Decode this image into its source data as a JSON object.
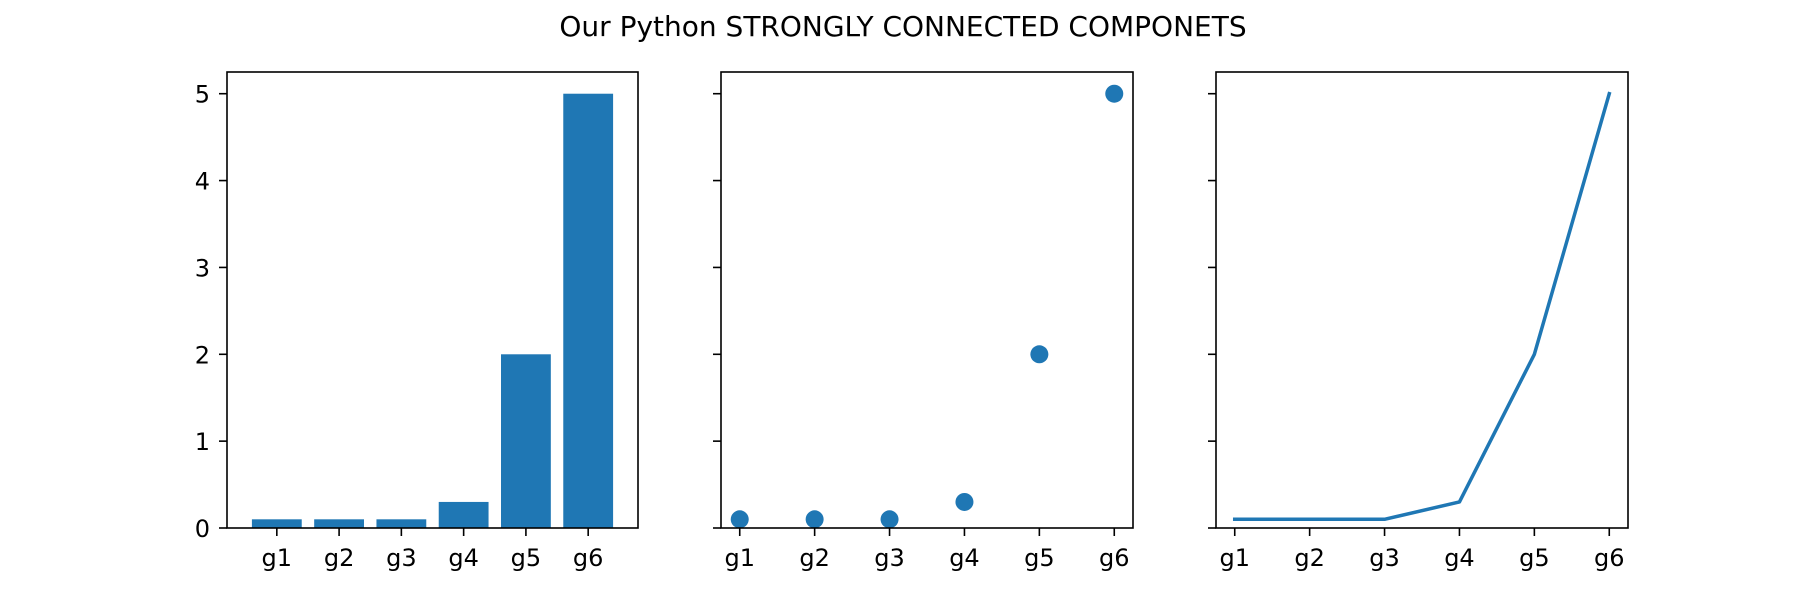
{
  "figure": {
    "title": "Our Python STRONGLY CONNECTED COMPONETS"
  },
  "chart_data": [
    {
      "type": "bar",
      "categories": [
        "g1",
        "g2",
        "g3",
        "g4",
        "g5",
        "g6"
      ],
      "values": [
        0.1,
        0.1,
        0.1,
        0.3,
        2,
        5
      ],
      "color": "#1f77b4",
      "ylim": [
        0,
        5.25
      ],
      "yticks": [
        0,
        1,
        2,
        3,
        4,
        5
      ],
      "show_y_tick_labels": true,
      "grid": false
    },
    {
      "type": "scatter",
      "categories": [
        "g1",
        "g2",
        "g3",
        "g4",
        "g5",
        "g6"
      ],
      "values": [
        0.1,
        0.1,
        0.1,
        0.3,
        2,
        5
      ],
      "color": "#1f77b4",
      "ylim": [
        0,
        5.25
      ],
      "yticks": [
        0,
        1,
        2,
        3,
        4,
        5
      ],
      "show_y_tick_labels": false,
      "grid": false
    },
    {
      "type": "line",
      "categories": [
        "g1",
        "g2",
        "g3",
        "g4",
        "g5",
        "g6"
      ],
      "values": [
        0.1,
        0.1,
        0.1,
        0.3,
        2,
        5
      ],
      "color": "#1f77b4",
      "ylim": [
        0,
        5.25
      ],
      "yticks": [
        0,
        1,
        2,
        3,
        4,
        5
      ],
      "show_y_tick_labels": false,
      "grid": false
    }
  ]
}
